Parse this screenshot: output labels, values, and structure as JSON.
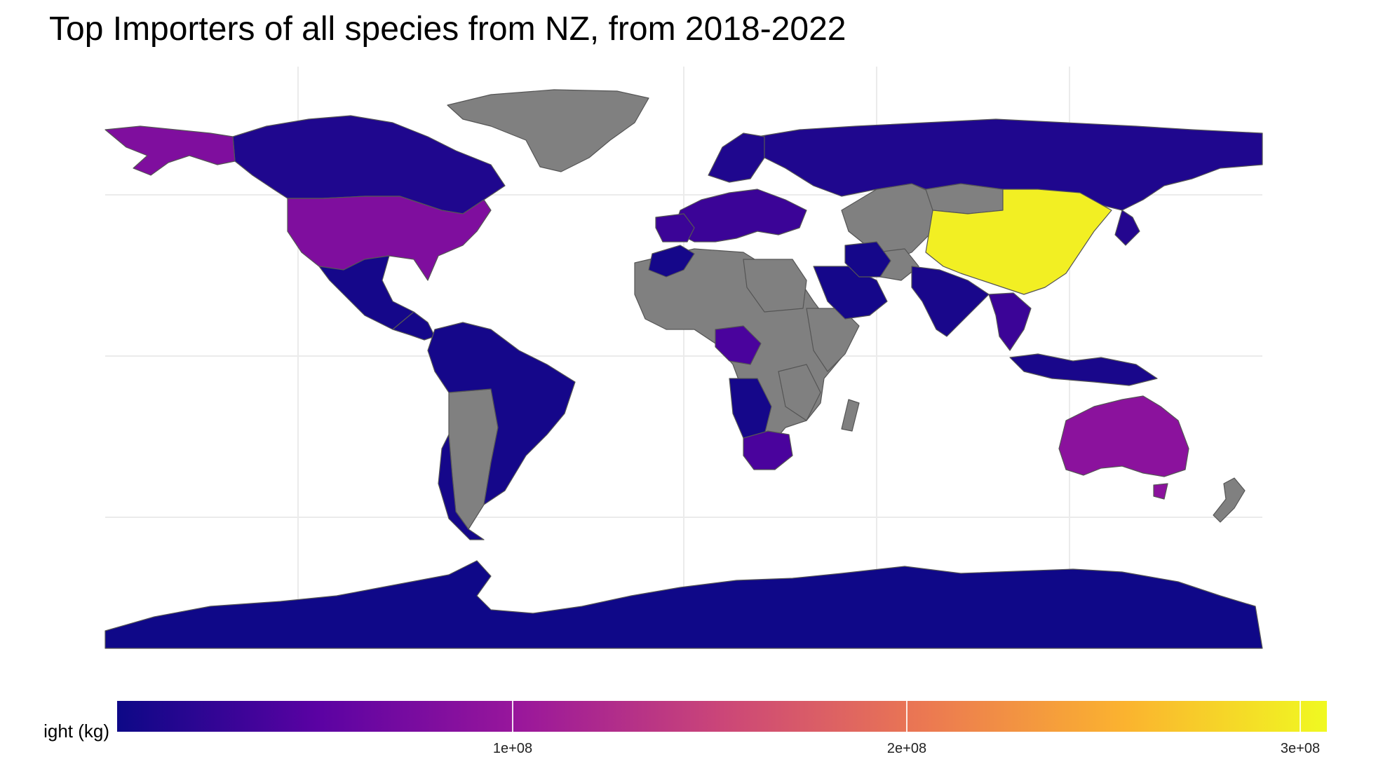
{
  "title": "Top Importers of all species from NZ, from 2018-2022",
  "legend": {
    "label": "ight (kg)",
    "ticks": [
      {
        "value": 100000000,
        "label": "1e+08"
      },
      {
        "value": 200000000,
        "label": "2e+08"
      },
      {
        "value": 300000000,
        "label": "3e+08"
      }
    ],
    "range": [
      0,
      307000000
    ],
    "palette": [
      "#0d0887",
      "#5b02a3",
      "#9a179b",
      "#cb4678",
      "#eb7852",
      "#fbb32f",
      "#f0f921"
    ],
    "no_data_color": "#808080"
  },
  "map_data": {
    "type": "choropleth",
    "value_unit": "kg",
    "approximate_values": {
      "China": 300000000,
      "Australia": 90000000,
      "United States": 80000000,
      "Alaska": 80000000,
      "South Africa": 40000000,
      "Canada": 12000000,
      "Russia": 12000000,
      "Japan": 15000000,
      "India": 8000000,
      "Brazil": 5000000,
      "Mexico": 5000000,
      "Argentina": 5000000,
      "Spain": 30000000,
      "Thailand": 30000000,
      "Saudi Arabia": 5000000,
      "Iran": 5000000,
      "Indonesia": 8000000,
      "Antarctica": 1000000
    }
  }
}
